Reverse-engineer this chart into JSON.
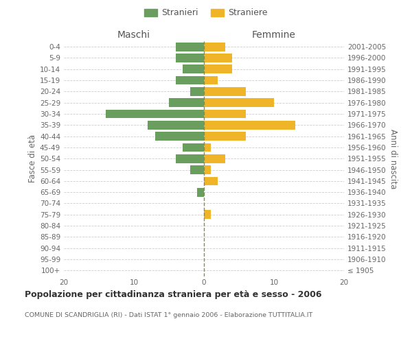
{
  "age_groups": [
    "100+",
    "95-99",
    "90-94",
    "85-89",
    "80-84",
    "75-79",
    "70-74",
    "65-69",
    "60-64",
    "55-59",
    "50-54",
    "45-49",
    "40-44",
    "35-39",
    "30-34",
    "25-29",
    "20-24",
    "15-19",
    "10-14",
    "5-9",
    "0-4"
  ],
  "birth_years": [
    "≤ 1905",
    "1906-1910",
    "1911-1915",
    "1916-1920",
    "1921-1925",
    "1926-1930",
    "1931-1935",
    "1936-1940",
    "1941-1945",
    "1946-1950",
    "1951-1955",
    "1956-1960",
    "1961-1965",
    "1966-1970",
    "1971-1975",
    "1976-1980",
    "1981-1985",
    "1986-1990",
    "1991-1995",
    "1996-2000",
    "2001-2005"
  ],
  "males": [
    0,
    0,
    0,
    0,
    0,
    0,
    0,
    1,
    0,
    2,
    4,
    3,
    7,
    8,
    14,
    5,
    2,
    4,
    3,
    4,
    4
  ],
  "females": [
    0,
    0,
    0,
    0,
    0,
    1,
    0,
    0,
    2,
    1,
    3,
    1,
    6,
    13,
    6,
    10,
    6,
    2,
    4,
    4,
    3
  ],
  "male_color": "#6a9e5e",
  "female_color": "#f0b429",
  "background_color": "#ffffff",
  "grid_color": "#cccccc",
  "title": "Popolazione per cittadinanza straniera per età e sesso - 2006",
  "subtitle": "COMUNE DI SCANDRIGLIA (RI) - Dati ISTAT 1° gennaio 2006 - Elaborazione TUTTITALIA.IT",
  "ylabel_left": "Fasce di età",
  "ylabel_right": "Anni di nascita",
  "xlabel_left": "Maschi",
  "xlabel_right": "Femmine",
  "legend_males": "Stranieri",
  "legend_females": "Straniere",
  "xlim": 20
}
